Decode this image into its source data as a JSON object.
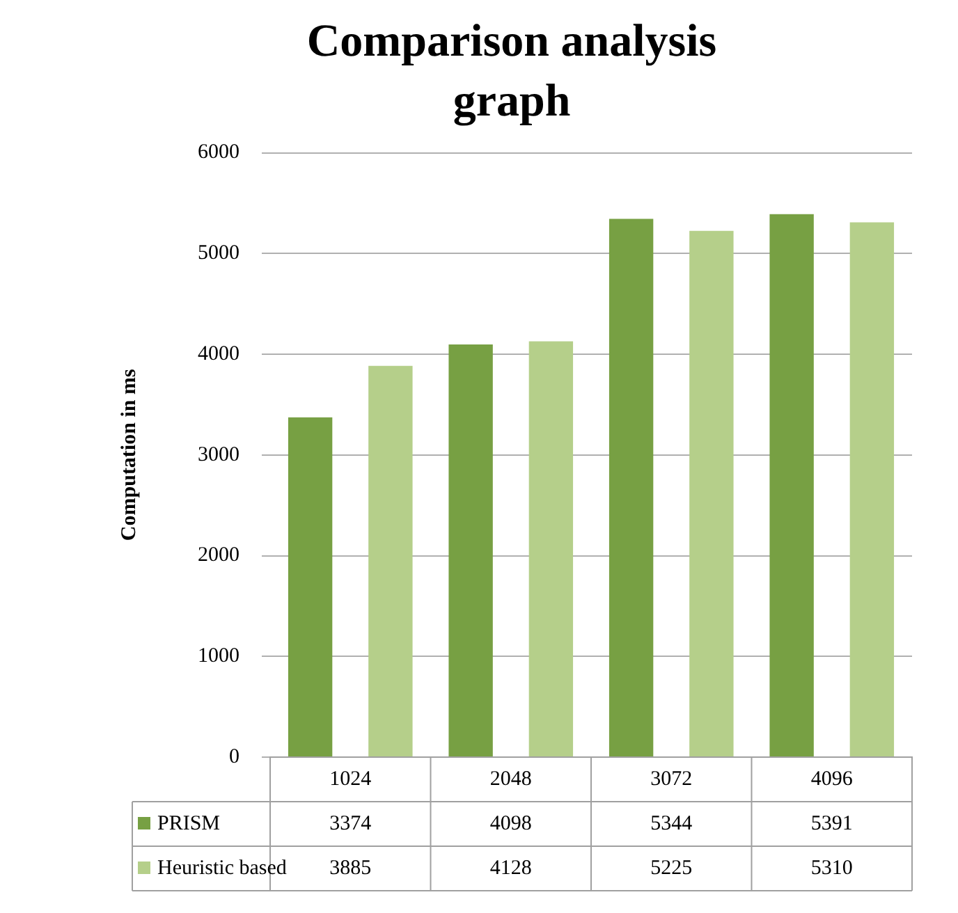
{
  "chart_data": {
    "type": "bar",
    "title": "Comparison analysis graph",
    "ylabel": "Computation in ms",
    "categories": [
      "1024",
      "2048",
      "3072",
      "4096"
    ],
    "series": [
      {
        "name": "PRISM",
        "color": "#77a043",
        "values": [
          3374,
          4098,
          5344,
          5391
        ]
      },
      {
        "name": "Heuristic based",
        "color": "#b5cf8a",
        "values": [
          3885,
          4128,
          5225,
          5310
        ]
      }
    ],
    "ylim": [
      0,
      6000
    ],
    "yticks": [
      0,
      1000,
      2000,
      3000,
      4000,
      5000,
      6000
    ],
    "grid": "y",
    "legend": "bottom",
    "data_labels": true
  }
}
